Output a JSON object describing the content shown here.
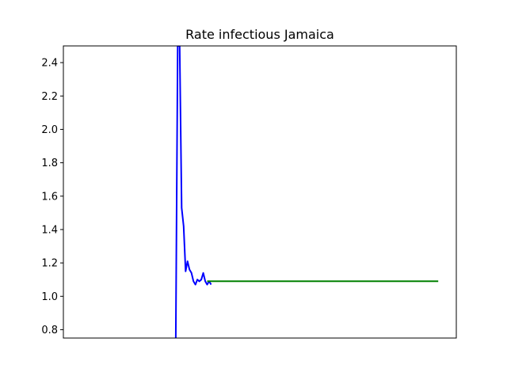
{
  "chart_data": {
    "type": "line",
    "title": "Rate infectious Jamaica",
    "xlabel": "",
    "ylabel": "",
    "ylim": [
      0.75,
      2.5
    ],
    "xlim": [
      0,
      100
    ],
    "yticks": [
      "0.8",
      "1.0",
      "1.2",
      "1.4",
      "1.6",
      "1.8",
      "2.0",
      "2.2",
      "2.4"
    ],
    "x_tick_labels_shown": false,
    "grid": false,
    "legend": "none",
    "series": [
      {
        "color": "#0000ff",
        "x": [
          28.6,
          29.1,
          29.6,
          30.1,
          30.6,
          31.1,
          31.6,
          32.1,
          32.6,
          33.1,
          33.6,
          34.1,
          34.6,
          35.1,
          35.6,
          36.1,
          36.6,
          37.1,
          37.6
        ],
        "y": [
          0.75,
          2.5,
          2.5,
          1.53,
          1.42,
          1.15,
          1.21,
          1.16,
          1.14,
          1.09,
          1.07,
          1.1,
          1.09,
          1.1,
          1.14,
          1.09,
          1.07,
          1.09,
          1.07
        ]
      },
      {
        "color": "#008000",
        "x": [
          36.6,
          95.4
        ],
        "y": [
          1.09,
          1.09
        ]
      }
    ]
  }
}
